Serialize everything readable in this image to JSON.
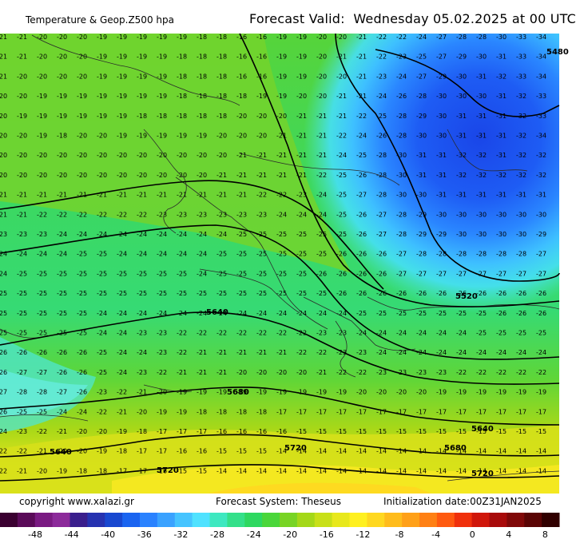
{
  "header": {
    "product": "Temperature & Geop.Z500 hpa",
    "valid_label": "Forecast Valid:",
    "valid_time": "Wednesday 05.02.2025 at 00 UTC"
  },
  "footer": {
    "copyright": "copyright www.xalazi.gr",
    "system": "Forecast System: Theseus",
    "init": "Initialization date:00Z31JAN2025"
  },
  "colorbar": {
    "labels": [
      "-48",
      "-44",
      "-40",
      "-36",
      "-32",
      "-28",
      "-24",
      "-20",
      "-16",
      "-12",
      "-8",
      "-4",
      "0",
      "4",
      "8"
    ],
    "colors": [
      "#3a0030",
      "#5a0a58",
      "#7a1a82",
      "#8c2a9a",
      "#3a1e8c",
      "#2632b0",
      "#1848d0",
      "#1a64f0",
      "#2a82ff",
      "#3aa2ff",
      "#46c4ff",
      "#50e2ff",
      "#3ee8c0",
      "#34e08a",
      "#2ed860",
      "#4ad63a",
      "#78d424",
      "#a4d818",
      "#c8e018",
      "#e8e81c",
      "#fff020",
      "#ffd820",
      "#ffbc1c",
      "#ffa018",
      "#ff8014",
      "#ff5a10",
      "#f0300c",
      "#d0160a",
      "#a80a0a",
      "#800808",
      "#5a0404",
      "#300000"
    ]
  },
  "contours": {
    "labels": [
      "5480",
      "5520",
      "5640",
      "5680",
      "5720",
      "5640",
      "5680",
      "5720",
      "5640",
      "5720"
    ]
  },
  "grid_values": {
    "rows": [
      [
        -21,
        -21,
        -20,
        -20,
        -20,
        -19,
        -19,
        -19,
        -19,
        -19,
        -18,
        -18,
        -16,
        -16,
        -19,
        -19,
        -20,
        -20,
        -21,
        -22,
        -22,
        -24,
        -27,
        -28,
        -28,
        -30,
        -33,
        -34
      ],
      [
        -21,
        -21,
        -20,
        -20,
        -20,
        -19,
        -19,
        -19,
        -19,
        -18,
        -18,
        -18,
        -16,
        -16,
        -19,
        -19,
        -20,
        -21,
        -21,
        -22,
        -23,
        -25,
        -27,
        -29,
        -30,
        -31,
        -33,
        -34
      ],
      [
        -21,
        -20,
        -20,
        -20,
        -20,
        -19,
        -19,
        -19,
        -19,
        -18,
        -18,
        -18,
        -16,
        -16,
        -19,
        -19,
        -20,
        -20,
        -21,
        -23,
        -24,
        -27,
        -29,
        -30,
        -31,
        -32,
        -33,
        -34
      ],
      [
        -20,
        -20,
        -19,
        -19,
        -19,
        -19,
        -19,
        -19,
        -19,
        -18,
        -18,
        -18,
        -18,
        -19,
        -19,
        -20,
        -20,
        -21,
        -21,
        -24,
        -26,
        -28,
        -30,
        -30,
        -30,
        -31,
        -32,
        -33
      ],
      [
        -20,
        -19,
        -19,
        -19,
        -19,
        -19,
        -19,
        -18,
        -18,
        -18,
        -18,
        -18,
        -20,
        -20,
        -20,
        -21,
        -21,
        -21,
        -22,
        -25,
        -28,
        -29,
        -30,
        -31,
        -31,
        -31,
        -32,
        -33
      ],
      [
        -20,
        -20,
        -19,
        -18,
        -20,
        -20,
        -19,
        -19,
        -19,
        -19,
        -19,
        -20,
        -20,
        -20,
        -21,
        -21,
        -21,
        -22,
        -24,
        -26,
        -28,
        -30,
        -30,
        -31,
        -31,
        -31,
        -32,
        -34
      ],
      [
        -20,
        -20,
        -20,
        -20,
        -20,
        -20,
        -20,
        -20,
        -20,
        -20,
        -20,
        -20,
        -21,
        -21,
        -21,
        -21,
        -21,
        -24,
        -25,
        -28,
        -30,
        -31,
        -31,
        -32,
        -32,
        -31,
        -32,
        -32
      ],
      [
        -20,
        -20,
        -20,
        -20,
        -20,
        -20,
        -20,
        -20,
        -20,
        -20,
        -20,
        -21,
        -21,
        -21,
        -21,
        -21,
        -22,
        -25,
        -26,
        -28,
        -30,
        -31,
        -31,
        -32,
        -32,
        -32,
        -32,
        -32
      ],
      [
        -21,
        -21,
        -21,
        -21,
        -21,
        -21,
        -21,
        -21,
        -21,
        -21,
        -21,
        -21,
        -21,
        -22,
        -22,
        -23,
        -24,
        -25,
        -27,
        -28,
        -30,
        -30,
        -31,
        -31,
        -31,
        -31,
        -31,
        -31
      ],
      [
        -21,
        -21,
        -22,
        -22,
        -22,
        -22,
        -22,
        -22,
        -23,
        -23,
        -23,
        -23,
        -23,
        -23,
        -24,
        -24,
        -24,
        -25,
        -26,
        -27,
        -28,
        -29,
        -30,
        -30,
        -30,
        -30,
        -30,
        -30
      ],
      [
        -23,
        -23,
        -23,
        -24,
        -24,
        -24,
        -24,
        -24,
        -24,
        -24,
        -24,
        -24,
        -25,
        -25,
        -25,
        -25,
        -25,
        -25,
        -26,
        -27,
        -28,
        -29,
        -29,
        -30,
        -30,
        -30,
        -30,
        -29
      ],
      [
        -24,
        -24,
        -24,
        -24,
        -25,
        -25,
        -24,
        -24,
        -24,
        -24,
        -24,
        -25,
        -25,
        -25,
        -25,
        -25,
        -25,
        -26,
        -26,
        -26,
        -27,
        -28,
        -28,
        -28,
        -28,
        -28,
        -28,
        -27
      ],
      [
        -24,
        -25,
        -25,
        -25,
        -25,
        -25,
        -25,
        -25,
        -25,
        -25,
        -24,
        -25,
        -25,
        -25,
        -25,
        -25,
        -26,
        -26,
        -26,
        -26,
        -27,
        -27,
        -27,
        -27,
        -27,
        -27,
        -27,
        -27
      ],
      [
        -25,
        -25,
        -25,
        -25,
        -25,
        -25,
        -25,
        -25,
        -25,
        -25,
        -25,
        -25,
        -25,
        -25,
        -25,
        -25,
        -25,
        -26,
        -26,
        -26,
        -26,
        -26,
        -26,
        -26,
        -26,
        -26,
        -26,
        -26
      ],
      [
        -25,
        -25,
        -25,
        -25,
        -25,
        -24,
        -24,
        -24,
        -24,
        -24,
        -24,
        -24,
        -24,
        -24,
        -24,
        -24,
        -24,
        -24,
        -25,
        -25,
        -25,
        -25,
        -25,
        -25,
        -25,
        -26,
        -26,
        -26
      ],
      [
        -25,
        -25,
        -25,
        -25,
        -25,
        -24,
        -24,
        -23,
        -23,
        -22,
        -22,
        -22,
        -22,
        -22,
        -22,
        -22,
        -23,
        -23,
        -24,
        -24,
        -24,
        -24,
        -24,
        -24,
        -25,
        -25,
        -25,
        -25
      ],
      [
        -26,
        -26,
        -26,
        -26,
        -26,
        -25,
        -24,
        -24,
        -23,
        -22,
        -21,
        -21,
        -21,
        -21,
        -21,
        -22,
        -22,
        -23,
        -23,
        -24,
        -24,
        -24,
        -24,
        -24,
        -24,
        -24,
        -24,
        -24
      ],
      [
        -26,
        -27,
        -27,
        -26,
        -26,
        -25,
        -24,
        -23,
        -22,
        -21,
        -21,
        -21,
        -20,
        -20,
        -20,
        -20,
        -21,
        -22,
        -22,
        -23,
        -23,
        -23,
        -23,
        -22,
        -22,
        -22,
        -22,
        -22
      ],
      [
        -27,
        -28,
        -28,
        -27,
        -26,
        -23,
        -22,
        -21,
        -20,
        -19,
        -19,
        -19,
        -19,
        -19,
        -19,
        -19,
        -19,
        -19,
        -20,
        -20,
        -20,
        -20,
        -19,
        -19,
        -19,
        -19,
        -19,
        -19
      ],
      [
        -26,
        -25,
        -25,
        -24,
        -24,
        -22,
        -21,
        -20,
        -19,
        -19,
        -18,
        -18,
        -18,
        -18,
        -17,
        -17,
        -17,
        -17,
        -17,
        -17,
        -17,
        -17,
        -17,
        -17,
        -17,
        -17,
        -17,
        -17
      ],
      [
        -24,
        -23,
        -22,
        -21,
        -20,
        -20,
        -19,
        -18,
        -17,
        -17,
        -17,
        -16,
        -16,
        -16,
        -16,
        -15,
        -15,
        -15,
        -15,
        -15,
        -15,
        -15,
        -15,
        -15,
        -15,
        -15,
        -15,
        -15
      ],
      [
        -22,
        -22,
        -21,
        -20,
        -20,
        -19,
        -18,
        -17,
        -17,
        -16,
        -16,
        -15,
        -15,
        -15,
        -14,
        -14,
        -14,
        -14,
        -14,
        -14,
        -14,
        -14,
        -14,
        -14,
        -14,
        -14,
        -14,
        -14
      ],
      [
        -22,
        -21,
        -20,
        -19,
        -18,
        -18,
        -17,
        -17,
        -16,
        -15,
        -15,
        -14,
        -14,
        -14,
        -14,
        -14,
        -14,
        -14,
        -14,
        -14,
        -14,
        -14,
        -14,
        -14,
        -14,
        -14,
        -14,
        -14
      ]
    ]
  }
}
